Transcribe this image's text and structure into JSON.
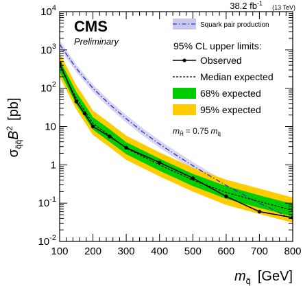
{
  "chart_data": {
    "type": "line",
    "lumi_label": "38.2 fb",
    "lumi_exp": "-1",
    "energy_label": "(13 TeV)",
    "experiment": "CMS",
    "status": "Preliminary",
    "xlabel_main": "m",
    "xlabel_sub": "q̃",
    "xlabel_unit": "[GeV]",
    "ylabel_main": "σ",
    "ylabel_sub": "q̃q̃",
    "ylabel_b": "B",
    "ylabel_sup": "2",
    "ylabel_unit": "[pb]",
    "xlim": [
      100,
      800
    ],
    "ylim": [
      0.01,
      10000
    ],
    "yscale": "log",
    "xticks": [
      100,
      200,
      300,
      400,
      500,
      600,
      700,
      800
    ],
    "xtick_labels": [
      "100",
      "200",
      "300",
      "400",
      "500",
      "600",
      "700",
      "800"
    ],
    "yticks": [
      0.01,
      0.1,
      1,
      10,
      100,
      1000,
      10000
    ],
    "ytick_labels": [
      {
        "base": "10",
        "exp": "-2"
      },
      {
        "base": "10",
        "exp": "-1"
      },
      {
        "base": "1",
        "exp": ""
      },
      {
        "base": "10",
        "exp": ""
      },
      {
        "base": "10",
        "exp": "2"
      },
      {
        "base": "10",
        "exp": "3"
      },
      {
        "base": "10",
        "exp": "4"
      }
    ],
    "legend_placement": "top-right",
    "legend_header": "95% CL upper limits:",
    "annotation": {
      "lhs": "m",
      "lhs_sub": "H̃",
      "eq": "= 0.75",
      "rhs": "m",
      "rhs_sub": "q̃"
    },
    "series": [
      {
        "name": "Squark pair production",
        "color": "#3333cc",
        "band_color": "#c8c8f0",
        "x": [
          100,
          150,
          200,
          250,
          300,
          350,
          400,
          450,
          500,
          550,
          600,
          650,
          700,
          750,
          800
        ],
        "y": [
          1400,
          330,
          100,
          38,
          16,
          7.2,
          3.5,
          1.8,
          0.95,
          0.52,
          0.29,
          0.17,
          0.1,
          0.062,
          0.038
        ],
        "band_factor": 1.25
      },
      {
        "name": "Observed",
        "color": "#000000",
        "x": [
          100,
          150,
          175,
          200,
          250,
          300,
          400,
          500,
          600,
          700,
          800
        ],
        "y": [
          450,
          45,
          22,
          10,
          5.5,
          2.8,
          1.15,
          0.45,
          0.15,
          0.06,
          0.042
        ]
      },
      {
        "name": "Median expected",
        "color": "#000000",
        "x": [
          100,
          150,
          175,
          200,
          250,
          300,
          400,
          500,
          600,
          700,
          800
        ],
        "y": [
          380,
          55,
          26,
          12,
          5.8,
          2.7,
          1.0,
          0.4,
          0.19,
          0.11,
          0.065
        ]
      },
      {
        "name": "68% expected",
        "color": "#00cc00",
        "x": [
          100,
          150,
          175,
          200,
          250,
          300,
          400,
          500,
          600,
          700,
          800
        ],
        "low": [
          270,
          38,
          18,
          8.3,
          4.0,
          1.9,
          0.7,
          0.28,
          0.13,
          0.075,
          0.045
        ],
        "high": [
          560,
          80,
          38,
          17.5,
          8.5,
          3.9,
          1.45,
          0.58,
          0.28,
          0.16,
          0.095
        ]
      },
      {
        "name": "95% expected",
        "color": "#ffcc00",
        "x": [
          100,
          150,
          175,
          200,
          250,
          300,
          400,
          500,
          600,
          700,
          800
        ],
        "low": [
          200,
          28,
          13,
          6.0,
          2.9,
          1.35,
          0.5,
          0.2,
          0.09,
          0.052,
          0.031
        ],
        "high": [
          820,
          120,
          57,
          26,
          12.5,
          5.8,
          2.1,
          0.85,
          0.41,
          0.24,
          0.14
        ]
      }
    ]
  }
}
